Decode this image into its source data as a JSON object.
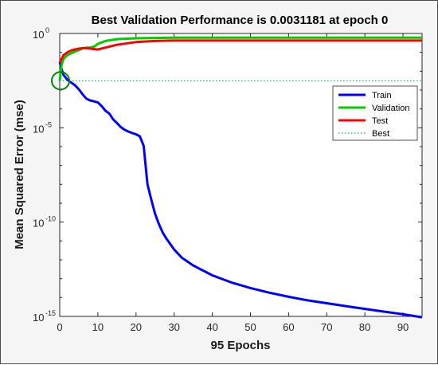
{
  "chart_data": {
    "type": "line",
    "title": "Best Validation Performance is 0.0031181 at epoch 0",
    "xlabel": "95 Epochs",
    "ylabel": "Mean Squared Error  (mse)",
    "xlim": [
      0,
      95
    ],
    "ylim": [
      1e-15,
      1
    ],
    "yscale": "log",
    "xticks": [
      0,
      10,
      20,
      30,
      40,
      50,
      60,
      70,
      80,
      90
    ],
    "yticks": [
      {
        "base": "10",
        "exp": "0"
      },
      {
        "base": "10",
        "exp": "-5"
      },
      {
        "base": "10",
        "exp": "-10"
      },
      {
        "base": "10",
        "exp": "-15"
      }
    ],
    "grid": false,
    "legend_position": "top-right",
    "series": [
      {
        "name": "Train",
        "color": "#0000ff",
        "x": [
          0,
          0.5,
          1,
          2,
          3,
          4,
          5,
          6,
          7,
          8,
          9,
          10,
          11,
          12,
          13,
          14,
          15,
          16,
          17,
          18,
          19,
          20,
          21,
          22,
          23,
          24,
          25,
          26,
          27,
          28,
          30,
          32,
          35,
          40,
          45,
          50,
          55,
          60,
          65,
          70,
          75,
          80,
          85,
          90,
          95
        ],
        "y": [
          0.0316,
          0.0126,
          0.0063,
          0.0035,
          0.0025,
          0.0018,
          0.0011,
          0.0006,
          0.00035,
          0.00028,
          0.00025,
          0.00022,
          0.00014,
          8e-05,
          5.6e-05,
          2.8e-05,
          1.8e-05,
          1.1e-05,
          7.9e-06,
          6.3e-06,
          5.3e-06,
          4.5e-06,
          3.5e-06,
          1.1e-06,
          1e-08,
          1.6e-09,
          2.8e-10,
          7.9e-11,
          2.8e-11,
          1.3e-11,
          3.5e-12,
          1.3e-12,
          5e-13,
          1.5e-13,
          6.3e-14,
          3.2e-14,
          1.8e-14,
          1.1e-14,
          7.1e-15,
          5e-15,
          3.5e-15,
          2.5e-15,
          1.8e-15,
          1.3e-15,
          9e-16
        ]
      },
      {
        "name": "Validation",
        "color": "#00cc00",
        "x": [
          0,
          0.5,
          1,
          2,
          3,
          4,
          5,
          6,
          7,
          8,
          9,
          10,
          12,
          15,
          20,
          30,
          40,
          50,
          60,
          70,
          80,
          90,
          95
        ],
        "y": [
          0.0031181,
          0.022,
          0.045,
          0.071,
          0.089,
          0.11,
          0.13,
          0.16,
          0.178,
          0.178,
          0.2,
          0.28,
          0.4,
          0.5,
          0.56,
          0.6,
          0.6,
          0.6,
          0.6,
          0.6,
          0.6,
          0.6,
          0.6
        ]
      },
      {
        "name": "Test",
        "color": "#ff0000",
        "x": [
          0,
          0.5,
          1,
          2,
          3,
          4,
          5,
          6,
          7,
          8,
          10,
          12,
          15,
          20,
          25,
          30,
          40,
          50,
          60,
          70,
          80,
          90,
          95
        ],
        "y": [
          0.028,
          0.045,
          0.071,
          0.1,
          0.126,
          0.141,
          0.158,
          0.165,
          0.165,
          0.158,
          0.141,
          0.178,
          0.25,
          0.35,
          0.4,
          0.42,
          0.42,
          0.42,
          0.42,
          0.42,
          0.42,
          0.42,
          0.42
        ]
      },
      {
        "name": "Best",
        "color": "#00aa66",
        "style": "dotted",
        "x": [
          0,
          95
        ],
        "y": [
          0.0031181,
          0.0031181
        ]
      }
    ],
    "best_point": {
      "x": 0,
      "y": 0.0031181,
      "color": "#008800"
    }
  }
}
